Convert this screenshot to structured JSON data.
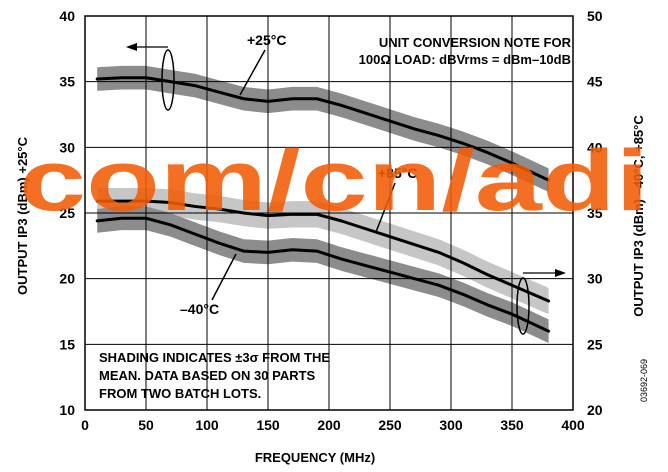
{
  "chart_data": {
    "type": "line",
    "xlabel": "FREQUENCY (MHz)",
    "ylabel_left": "OUTPUT IP3 (dBm) +25°C",
    "ylabel_right": "OUTPUT IP3 (dBm) –40°C, +85°C",
    "xlim": [
      0,
      400
    ],
    "ylim_left": [
      10,
      40
    ],
    "ylim_right": [
      20,
      50
    ],
    "x_ticks": [
      "0",
      "50",
      "100",
      "150",
      "200",
      "250",
      "300",
      "350",
      "400"
    ],
    "y_ticks_left": [
      "10",
      "15",
      "20",
      "25",
      "30",
      "35",
      "40"
    ],
    "y_ticks_right": [
      "20",
      "25",
      "30",
      "35",
      "40",
      "45",
      "50"
    ],
    "grid": true,
    "series": [
      {
        "name": "+25°C",
        "axis": "left",
        "color": "#000000",
        "band_color": "#8c8c8c",
        "x": [
          10,
          30,
          50,
          70,
          90,
          110,
          130,
          150,
          170,
          190,
          210,
          230,
          250,
          270,
          290,
          310,
          330,
          350,
          380
        ],
        "y": [
          35.2,
          35.3,
          35.3,
          35.0,
          34.7,
          34.2,
          33.7,
          33.5,
          33.7,
          33.7,
          33.2,
          32.6,
          32.0,
          31.4,
          30.9,
          30.3,
          29.6,
          28.8,
          27.5
        ],
        "band": 0.9
      },
      {
        "name": "+85°C",
        "axis": "right",
        "color": "#000000",
        "band_color": "#c6c6c6",
        "x": [
          10,
          30,
          50,
          70,
          90,
          110,
          130,
          150,
          170,
          190,
          210,
          230,
          250,
          270,
          290,
          310,
          330,
          350,
          380
        ],
        "y": [
          35.9,
          35.9,
          35.9,
          35.8,
          35.5,
          35.3,
          35.0,
          34.8,
          34.9,
          34.9,
          34.4,
          33.8,
          33.2,
          32.6,
          32.0,
          31.2,
          30.3,
          29.5,
          28.3
        ],
        "band": 1.0
      },
      {
        "name": "–40°C",
        "axis": "right",
        "color": "#000000",
        "band_color": "#8c8c8c",
        "x": [
          10,
          30,
          50,
          70,
          90,
          110,
          130,
          150,
          170,
          190,
          210,
          230,
          250,
          270,
          290,
          310,
          330,
          350,
          380
        ],
        "y": [
          34.4,
          34.6,
          34.6,
          34.1,
          33.4,
          32.7,
          32.1,
          32.0,
          32.2,
          32.1,
          31.5,
          31.0,
          30.5,
          30.0,
          29.5,
          28.8,
          28.0,
          27.3,
          26.0
        ],
        "band": 0.9
      }
    ],
    "annotations": {
      "note_top": [
        "UNIT CONVERSION NOTE FOR",
        "100Ω LOAD: dBVrms = dBm–10dB"
      ],
      "note_bottom": [
        "SHADING INDICATES ±3σ FROM THE",
        "MEAN. DATA BASED ON 30 PARTS",
        "FROM TWO BATCH LOTS."
      ],
      "figure_id": "03692-069"
    }
  },
  "watermark": {
    "text": "com/cn/adi",
    "color": "#f25c05"
  }
}
